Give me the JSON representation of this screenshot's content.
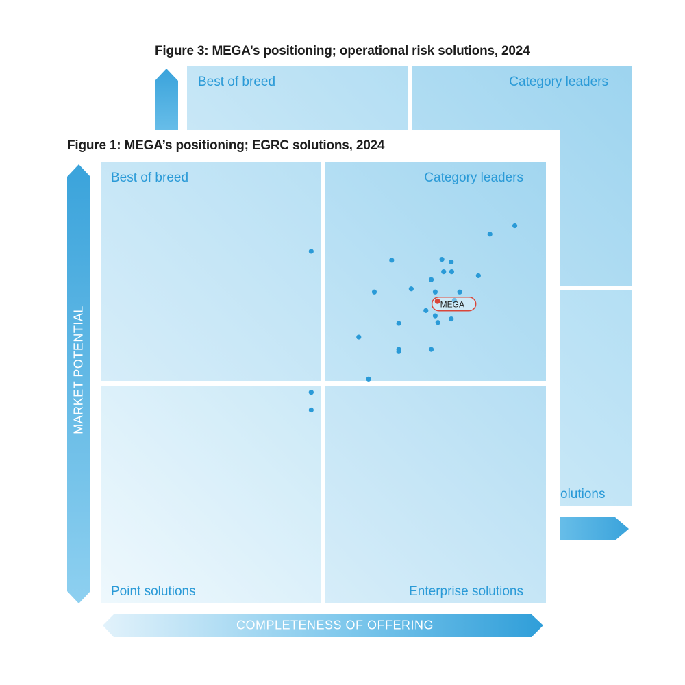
{
  "figure3": {
    "title": "Figure 3: MEGA’s positioning; operational risk solutions, 2024",
    "quadrants": {
      "top_left": "Best of breed",
      "top_right": "Category leaders",
      "bottom_right": "Enterprise solutions"
    },
    "visible_fragment_bottom_right": "olutions"
  },
  "figure1": {
    "title": "Figure 1: MEGA’s positioning; EGRC solutions, 2024",
    "quadrants": {
      "top_left": "Best of breed",
      "top_right": "Category leaders",
      "bottom_left": "Point solutions",
      "bottom_right": "Enterprise solutions"
    },
    "y_axis_label": "MARKET POTENTIAL",
    "x_axis_label": "COMPLETENESS OF OFFERING"
  },
  "colors": {
    "accent": "#2a9ad7",
    "highlight": "#d9463a",
    "point": "#2a9ad7"
  },
  "chart_data": {
    "type": "scatter",
    "title": "Figure 1: MEGA’s positioning; EGRC solutions, 2024",
    "xlabel": "COMPLETENESS OF OFFERING",
    "ylabel": "MARKET POTENTIAL",
    "xlim": [
      0,
      1
    ],
    "ylim": [
      0,
      1
    ],
    "quadrant_split": [
      0.5,
      0.5
    ],
    "highlight": {
      "label": "MEGA",
      "x": 0.756,
      "y": 0.678
    },
    "points": [
      {
        "x": 0.472,
        "y": 0.797
      },
      {
        "x": 0.874,
        "y": 0.836
      },
      {
        "x": 0.93,
        "y": 0.855
      },
      {
        "x": 0.653,
        "y": 0.777
      },
      {
        "x": 0.766,
        "y": 0.779
      },
      {
        "x": 0.787,
        "y": 0.773
      },
      {
        "x": 0.77,
        "y": 0.751
      },
      {
        "x": 0.788,
        "y": 0.751
      },
      {
        "x": 0.848,
        "y": 0.742
      },
      {
        "x": 0.742,
        "y": 0.733
      },
      {
        "x": 0.697,
        "y": 0.712
      },
      {
        "x": 0.614,
        "y": 0.705
      },
      {
        "x": 0.751,
        "y": 0.705
      },
      {
        "x": 0.806,
        "y": 0.705
      },
      {
        "x": 0.794,
        "y": 0.686
      },
      {
        "x": 0.73,
        "y": 0.663
      },
      {
        "x": 0.751,
        "y": 0.651
      },
      {
        "x": 0.787,
        "y": 0.644
      },
      {
        "x": 0.757,
        "y": 0.636
      },
      {
        "x": 0.669,
        "y": 0.634
      },
      {
        "x": 0.579,
        "y": 0.603
      },
      {
        "x": 0.742,
        "y": 0.575
      },
      {
        "x": 0.669,
        "y": 0.575
      },
      {
        "x": 0.669,
        "y": 0.57
      },
      {
        "x": 0.601,
        "y": 0.508
      },
      {
        "x": 0.472,
        "y": 0.478
      },
      {
        "x": 0.472,
        "y": 0.438
      }
    ]
  }
}
